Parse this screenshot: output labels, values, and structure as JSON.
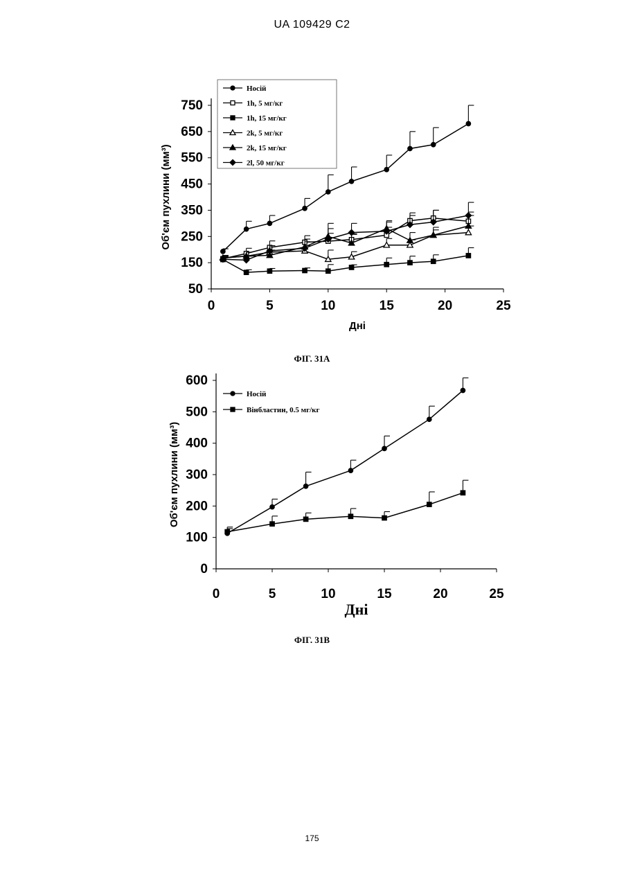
{
  "page": {
    "header": "UA   109429   C2",
    "footer": "175"
  },
  "chart_data": [
    {
      "type": "line",
      "caption": "ФІГ. 31А",
      "xlabel": "Дні",
      "ylabel": "Об'єм пухлини (мм³)",
      "xlim": [
        0,
        25
      ],
      "ylim": [
        50,
        750
      ],
      "xticks": [
        0,
        5,
        10,
        15,
        20,
        25
      ],
      "yticks": [
        50,
        150,
        250,
        350,
        450,
        550,
        650,
        750
      ],
      "legend_position": "top-left",
      "series": [
        {
          "name": "Носій",
          "marker": "circle-filled",
          "x": [
            1,
            3,
            5,
            8,
            10,
            12,
            15,
            17,
            19,
            22
          ],
          "y": [
            193,
            278,
            300,
            357,
            420,
            460,
            505,
            585,
            600,
            680
          ],
          "error": [
            10,
            30,
            30,
            38,
            65,
            55,
            55,
            65,
            65,
            70
          ]
        },
        {
          "name": "1h, 5 мг/кг",
          "marker": "square-open",
          "x": [
            1,
            3,
            5,
            8,
            10,
            12,
            15,
            17,
            19,
            22
          ],
          "y": [
            165,
            185,
            208,
            228,
            232,
            238,
            255,
            310,
            320,
            308
          ],
          "error": [
            10,
            20,
            25,
            25,
            30,
            20,
            30,
            30,
            30,
            35
          ]
        },
        {
          "name": "1h, 15 мг/кг",
          "marker": "square-filled",
          "x": [
            1,
            3,
            5,
            8,
            10,
            12,
            15,
            17,
            19,
            22
          ],
          "y": [
            162,
            113,
            118,
            120,
            118,
            132,
            143,
            150,
            155,
            177
          ],
          "error": [
            10,
            10,
            10,
            10,
            25,
            10,
            25,
            25,
            25,
            30
          ]
        },
        {
          "name": "2k, 5 мг/кг",
          "marker": "triangle-open",
          "x": [
            1,
            3,
            5,
            8,
            10,
            12,
            15,
            17,
            19,
            22
          ],
          "y": [
            168,
            175,
            190,
            195,
            163,
            172,
            217,
            217,
            255,
            265
          ],
          "error": [
            10,
            15,
            20,
            20,
            35,
            20,
            25,
            20,
            20,
            25
          ]
        },
        {
          "name": "2k, 15 мг/кг",
          "marker": "triangle-filled",
          "x": [
            1,
            3,
            5,
            8,
            10,
            12,
            15,
            17,
            19,
            22
          ],
          "y": [
            168,
            175,
            178,
            210,
            250,
            225,
            280,
            235,
            255,
            290
          ],
          "error": [
            10,
            15,
            20,
            30,
            50,
            35,
            30,
            30,
            30,
            40
          ]
        },
        {
          "name": "2l, 50 мг/кг",
          "marker": "diamond-filled",
          "x": [
            1,
            3,
            5,
            8,
            10,
            12,
            15,
            17,
            19,
            22
          ],
          "y": [
            163,
            160,
            195,
            205,
            240,
            265,
            270,
            295,
            305,
            330
          ],
          "error": [
            10,
            15,
            20,
            25,
            40,
            35,
            35,
            35,
            45,
            50
          ]
        }
      ]
    },
    {
      "type": "line",
      "caption": "ФІГ. 31В",
      "xlabel": "Дні",
      "ylabel": "Об'єм пухлини (мм³)",
      "xlim": [
        0,
        25
      ],
      "ylim": [
        0,
        600
      ],
      "xticks": [
        0,
        5,
        10,
        15,
        20,
        25
      ],
      "yticks": [
        0,
        100,
        200,
        300,
        400,
        500,
        600
      ],
      "legend_position": "top-left",
      "series": [
        {
          "name": "Носій",
          "marker": "circle-filled",
          "x": [
            1,
            5,
            8,
            12,
            15,
            19,
            22
          ],
          "y": [
            113,
            197,
            263,
            313,
            383,
            476,
            568
          ],
          "error": [
            15,
            25,
            45,
            33,
            40,
            42,
            40
          ]
        },
        {
          "name": "Вінбластин, 0.5 мг/кг",
          "marker": "square-filled",
          "x": [
            1,
            5,
            8,
            12,
            15,
            19,
            22
          ],
          "y": [
            118,
            143,
            158,
            167,
            162,
            205,
            242
          ],
          "error": [
            15,
            25,
            20,
            25,
            20,
            40,
            40
          ]
        }
      ]
    }
  ]
}
